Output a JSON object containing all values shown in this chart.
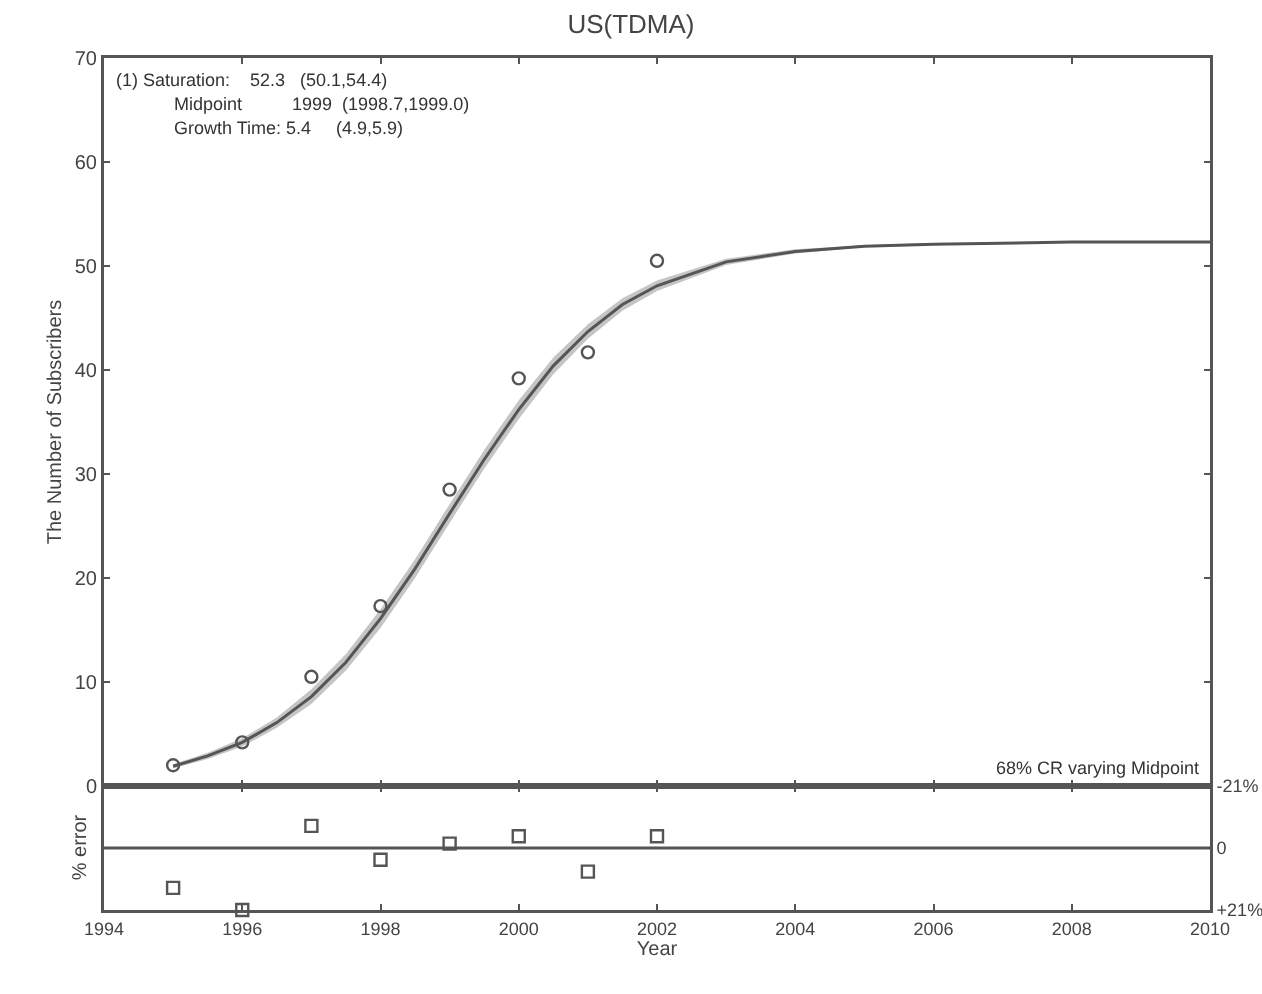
{
  "chart_data": [
    {
      "type": "scatter",
      "title": "US(TDMA)",
      "ylabel": "The Number of Subscribers",
      "xlim": [
        1994,
        2010
      ],
      "xticks": [
        1994,
        1996,
        1998,
        2000,
        2002,
        2004,
        2006,
        2008,
        2010
      ],
      "ylim": [
        0,
        70
      ],
      "yticks": [
        0,
        10,
        20,
        30,
        40,
        50,
        60,
        70
      ],
      "tick_labels": "y",
      "grid": false,
      "legend": false,
      "marker": "circle",
      "annotations": [
        "(1) Saturation:    52.3   (50.1,54.4)",
        "Midpoint          1999  (1998.7,1999.0)",
        "Growth Time: 5.4     (4.9,5.9)",
        "68% CR varying Midpoint"
      ],
      "series": [
        {
          "type": "line",
          "marker": "none",
          "color": "#555555",
          "x": [
            1995,
            1995.5,
            1996,
            1996.5,
            1997,
            1997.5,
            1998,
            1998.5,
            1999,
            1999.5,
            2000,
            2000.5,
            2001,
            2001.5,
            2002,
            2003,
            2004,
            2005,
            2006,
            2008,
            2010
          ],
          "values": [
            1.9,
            2.9,
            4.2,
            6.1,
            8.6,
            11.9,
            16.1,
            20.9,
            26.2,
            31.4,
            36.2,
            40.4,
            43.7,
            46.3,
            48.1,
            50.4,
            51.4,
            51.9,
            52.1,
            52.3,
            52.3
          ],
          "lower": [
            1.7,
            2.6,
            3.8,
            5.6,
            7.9,
            11.1,
            15.2,
            20.0,
            25.3,
            30.5,
            35.3,
            39.6,
            43.0,
            45.7,
            47.6,
            50.1,
            51.2,
            51.8,
            52.0,
            52.3,
            52.3
          ],
          "upper": [
            2.1,
            3.2,
            4.6,
            6.6,
            9.3,
            12.7,
            17.0,
            21.8,
            27.1,
            32.3,
            37.1,
            41.2,
            44.4,
            46.9,
            48.6,
            50.7,
            51.6,
            52.0,
            52.2,
            52.3,
            52.3
          ]
        },
        {
          "color": "#555555",
          "x": [
            1995,
            1996,
            1997,
            1998,
            1999,
            2000,
            2001,
            2002
          ],
          "values": [
            2.0,
            4.2,
            10.5,
            17.3,
            28.5,
            39.2,
            41.7,
            50.5
          ]
        }
      ]
    },
    {
      "type": "scatter",
      "xlabel": "Year",
      "ylabel": "% error",
      "xlim": [
        1994,
        2010
      ],
      "xticks": [
        1994,
        1996,
        1998,
        2000,
        2002,
        2004,
        2006,
        2008,
        2010
      ],
      "ylim": [
        21,
        -21
      ],
      "yticks": [
        {
          "value": -21,
          "label": "-21%"
        },
        0,
        {
          "value": 21,
          "label": "+21%"
        }
      ],
      "grid": false,
      "legend": false,
      "marker": "square",
      "ref_lines": [
        {
          "axis": "y",
          "value": 0,
          "color": "#555555"
        }
      ],
      "series": [
        {
          "color": "#555555",
          "x": [
            1995,
            1996,
            1997,
            1998,
            1999,
            2000,
            2001,
            2002
          ],
          "values": [
            13.5,
            21,
            -7.5,
            4,
            -1.5,
            -4,
            8,
            -4
          ]
        }
      ]
    }
  ]
}
